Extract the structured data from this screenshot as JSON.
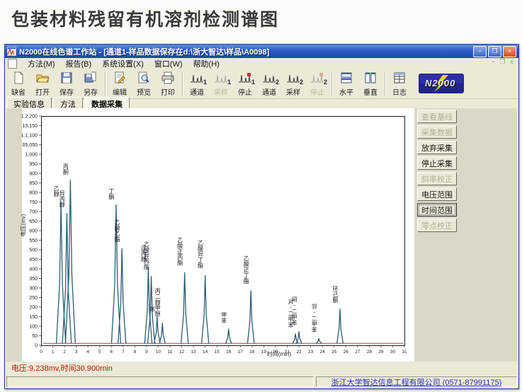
{
  "page": {
    "heading": "包装材料残留有机溶剂检测谱图"
  },
  "window": {
    "title": "N2000在线色谱工作站 - [通道1-样品数据保存在d:\\浙大智达\\样品\\A0098]",
    "controls": {
      "minimize": "−",
      "maximize": "❐",
      "close": "×"
    },
    "mdi_controls": {
      "minimize": "−",
      "restore": "❐",
      "close": "x"
    }
  },
  "menu": {
    "items": [
      {
        "label": "方法(M)"
      },
      {
        "label": "报告(B)"
      },
      {
        "label": "系统设置(X)"
      },
      {
        "label": "窗口(W)"
      },
      {
        "label": "帮助(H)"
      }
    ]
  },
  "toolbar": {
    "buttons": [
      {
        "label": "缺省"
      },
      {
        "label": "打开"
      },
      {
        "label": "保存"
      },
      {
        "label": "另存"
      },
      {
        "label": "编辑"
      },
      {
        "label": "预览"
      },
      {
        "label": "打印"
      },
      {
        "label": "通道",
        "badge": "1"
      },
      {
        "label": "采样",
        "badge": "1",
        "disabled": true
      },
      {
        "label": "停止",
        "badge": "1"
      },
      {
        "label": "通道",
        "badge": "2"
      },
      {
        "label": "采样",
        "badge": "2"
      },
      {
        "label": "停止",
        "badge": "2",
        "disabled": true
      },
      {
        "label": "水平"
      },
      {
        "label": "垂直"
      },
      {
        "label": "日志"
      }
    ],
    "logo_text": "N2000"
  },
  "tabs": [
    {
      "label": "实验信息",
      "active": false
    },
    {
      "label": "方法",
      "active": false
    },
    {
      "label": "数据采集",
      "active": true
    }
  ],
  "side_buttons": [
    {
      "label": "查看基线",
      "enabled": false
    },
    {
      "label": "采集数据",
      "enabled": false
    },
    {
      "label": "放弃采集",
      "enabled": true
    },
    {
      "label": "停止采集",
      "enabled": true
    },
    {
      "label": "斜率校正",
      "enabled": false
    },
    {
      "label": "电压范围",
      "enabled": true
    },
    {
      "label": "时间范围",
      "enabled": true,
      "focused": true
    },
    {
      "label": "零点校正",
      "enabled": false
    }
  ],
  "status": {
    "readout": "电压:9.238mv,时间30.900min",
    "company": "浙江大学智达信息工程有限公司 (0571-87991175)"
  },
  "chart_data": {
    "type": "line",
    "title": "",
    "xlabel": "时间(min)",
    "ylabel": "电压(mv)",
    "xlim": [
      0,
      31
    ],
    "x_tick_step": 1,
    "ylim": [
      0,
      1200
    ],
    "y_tick_step": 50,
    "grid": false,
    "legend": false,
    "line_color": "#2d5d72",
    "baseline_color": "#a04a38",
    "baseline_mv": 10,
    "peaks": [
      {
        "t": 1.7,
        "mv": 750,
        "label": "乙醇"
      },
      {
        "t": 2.2,
        "mv": 690,
        "label": "异丙醇"
      },
      {
        "t": 2.5,
        "mv": 865,
        "label": "丙酮"
      },
      {
        "t": 6.4,
        "mv": 735,
        "label": "丁酮"
      },
      {
        "t": 6.9,
        "mv": 505,
        "label": "乙酸乙酯"
      },
      {
        "t": 9.15,
        "mv": 405,
        "label": "正丙醇"
      },
      {
        "t": 9.4,
        "mv": 360,
        "label": "乙酸异丙酯"
      },
      {
        "t": 9.9,
        "mv": 150,
        "label": "苯"
      },
      {
        "t": 10.35,
        "mv": 115,
        "label": "丙二醇甲醚"
      },
      {
        "t": 12.25,
        "mv": 380,
        "label": "乙酸正丙酯"
      },
      {
        "t": 14.0,
        "mv": 365,
        "label": "乙酸异丁酯"
      },
      {
        "t": 16.0,
        "mv": 85,
        "label": "甲苯"
      },
      {
        "t": 17.9,
        "mv": 285,
        "label": "乙酸正丁酯"
      },
      {
        "t": 21.7,
        "mv": 60,
        "label": "对-二甲苯"
      },
      {
        "t": 22.0,
        "mv": 72,
        "label": "间-二甲苯"
      },
      {
        "t": 23.7,
        "mv": 35,
        "label": "邻-二甲苯"
      },
      {
        "t": 25.5,
        "mv": 190,
        "label": "环己酮"
      }
    ]
  }
}
